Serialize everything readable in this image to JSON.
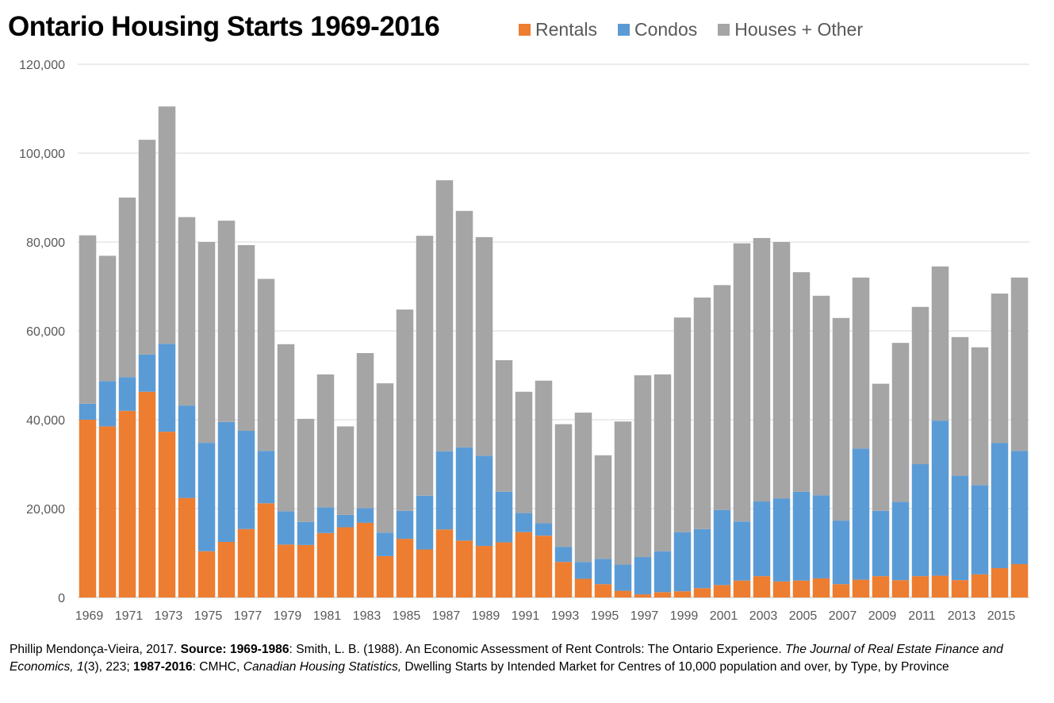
{
  "chart_data": {
    "type": "bar",
    "stacked": true,
    "title": "Ontario Housing Starts 1969-2016",
    "xlabel": "",
    "ylabel": "",
    "ylim": [
      0,
      120000
    ],
    "yticks": [
      0,
      20000,
      40000,
      60000,
      80000,
      100000,
      120000
    ],
    "ytick_labels": [
      "0",
      "20,000",
      "40,000",
      "60,000",
      "80,000",
      "100,000",
      "120,000"
    ],
    "grid": true,
    "legend_position": "top",
    "categories": [
      "1969",
      "1970",
      "1971",
      "1972",
      "1973",
      "1974",
      "1975",
      "1976",
      "1977",
      "1978",
      "1979",
      "1980",
      "1981",
      "1982",
      "1983",
      "1984",
      "1985",
      "1986",
      "1987",
      "1988",
      "1989",
      "1990",
      "1991",
      "1992",
      "1993",
      "1994",
      "1995",
      "1996",
      "1997",
      "1998",
      "1999",
      "2000",
      "2001",
      "2002",
      "2003",
      "2004",
      "2005",
      "2006",
      "2007",
      "2008",
      "2009",
      "2010",
      "2011",
      "2012",
      "2013",
      "2014",
      "2015",
      "2016"
    ],
    "xtick_labels": [
      "1969",
      "",
      "1971",
      "",
      "1973",
      "",
      "1975",
      "",
      "1977",
      "",
      "1979",
      "",
      "1981",
      "",
      "1983",
      "",
      "1985",
      "",
      "1987",
      "",
      "1989",
      "",
      "1991",
      "",
      "1993",
      "",
      "1995",
      "",
      "1997",
      "",
      "1999",
      "",
      "2001",
      "",
      "2003",
      "",
      "2005",
      "",
      "2007",
      "",
      "2009",
      "",
      "2011",
      "",
      "2013",
      "",
      "2015",
      ""
    ],
    "series": [
      {
        "name": "Rentals",
        "color": "#ed7d31",
        "values": [
          40000,
          38500,
          42000,
          46300,
          37300,
          22400,
          10400,
          12500,
          15400,
          21200,
          11900,
          11800,
          14500,
          15800,
          16800,
          9300,
          13200,
          10800,
          15300,
          12800,
          11600,
          12400,
          14700,
          13900,
          8000,
          4200,
          3000,
          1500,
          700,
          1200,
          1400,
          2100,
          2800,
          3800,
          4800,
          3600,
          3800,
          4300,
          3000,
          4000,
          4800,
          3900,
          4800,
          4900,
          3900,
          5200,
          6600,
          7500
        ]
      },
      {
        "name": "Condos",
        "color": "#5b9bd5",
        "values": [
          3600,
          10200,
          7600,
          8400,
          19800,
          20800,
          24400,
          27000,
          22100,
          11800,
          7500,
          5200,
          5800,
          2800,
          3300,
          5300,
          6300,
          12100,
          17600,
          21000,
          20300,
          11400,
          4300,
          2800,
          3400,
          3800,
          5700,
          5900,
          8400,
          9200,
          13300,
          13300,
          16900,
          13300,
          16800,
          18700,
          20000,
          18700,
          14300,
          29500,
          14700,
          17600,
          25200,
          34900,
          23500,
          20100,
          28200,
          25500
        ]
      },
      {
        "name": "Houses + Other",
        "color": "#a5a5a5",
        "values": [
          37900,
          28200,
          40400,
          48300,
          53400,
          42400,
          45200,
          45300,
          41800,
          38700,
          37600,
          23200,
          29900,
          19900,
          34900,
          33600,
          45300,
          58500,
          61000,
          53200,
          49200,
          29600,
          27300,
          32100,
          27600,
          33600,
          23300,
          32200,
          40900,
          39800,
          48300,
          52100,
          50600,
          62600,
          59300,
          57700,
          49400,
          44900,
          45600,
          38500,
          28600,
          35800,
          35400,
          34700,
          31200,
          31000,
          33600,
          39000
        ]
      }
    ]
  },
  "legend": [
    {
      "label": "Rentals",
      "color": "#ed7d31"
    },
    {
      "label": "Condos",
      "color": "#5b9bd5"
    },
    {
      "label": "Houses + Other",
      "color": "#a5a5a5"
    }
  ],
  "footer": {
    "author": "Phillip Mendonça-Vieira, 2017. ",
    "source_label": "Source: ",
    "range1_label": "1969-1986",
    "range1_text_a": ": Smith, L. B. (1988). An Economic Assessment of Rent Controls: The Ontario Experience. ",
    "range1_journal": "The Journal of Real Estate Finance and Economics,",
    "range1_volume": " 1",
    "range1_text_b": "(3), 223; ",
    "range2_label": "1987-2016",
    "range2_text_a": ": CMHC, ",
    "range2_publication": "Canadian Housing Statistics,",
    "range2_text_b": " Dwelling Starts by Intended Market for Centres of 10,000 population and over, by Type, by Province"
  }
}
